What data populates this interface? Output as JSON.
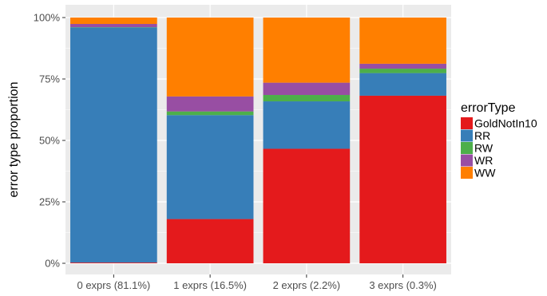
{
  "chart_data": {
    "type": "bar",
    "stacked": true,
    "categories": [
      "0 exprs (81.1%)",
      "1 exprs (16.5%)",
      "2 exprs (2.2%)",
      "3 exprs (0.3%)"
    ],
    "series": [
      {
        "name": "GoldNotIn10",
        "color": "#E41A1C",
        "values": [
          0.3,
          18.0,
          46.6,
          68.2
        ]
      },
      {
        "name": "RR",
        "color": "#377EB8",
        "values": [
          95.7,
          42.3,
          19.3,
          9.2
        ]
      },
      {
        "name": "RW",
        "color": "#4DAF4A",
        "values": [
          0.1,
          1.5,
          2.6,
          1.8
        ]
      },
      {
        "name": "WR",
        "color": "#984EA3",
        "values": [
          1.3,
          6.1,
          5.0,
          2.0
        ]
      },
      {
        "name": "WW",
        "color": "#FF7F00",
        "values": [
          2.6,
          32.1,
          26.5,
          18.8
        ]
      }
    ],
    "ylabel": "error type proportion",
    "xlabel": "",
    "ylim": [
      0,
      100
    ],
    "yticks": [
      "0%",
      "25%",
      "50%",
      "75%",
      "100%"
    ],
    "ytick_values": [
      0,
      25,
      50,
      75,
      100
    ],
    "legend": {
      "title": "errorType",
      "position": "right"
    },
    "grid": true,
    "panel_background": "#EBEBEB",
    "grid_color": "#FFFFFF"
  }
}
